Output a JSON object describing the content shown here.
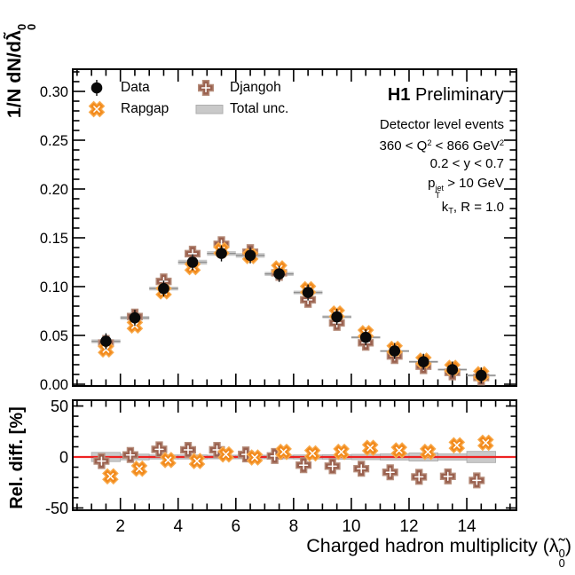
{
  "header": {
    "h1_label": [
      {
        "t": "H1",
        "b": true
      },
      {
        "t": " Preliminary"
      }
    ]
  },
  "conditions": {
    "lines": [
      [
        {
          "t": "Detector level events"
        }
      ],
      [
        {
          "t": "360 < Q"
        },
        {
          "sup": "2"
        },
        {
          "t": " < 866 GeV"
        },
        {
          "sup": "2"
        }
      ],
      [
        {
          "t": "0.2 < y < 0.7"
        }
      ],
      [
        {
          "t": "p"
        },
        {
          "supsub": [
            "jet",
            "T"
          ]
        },
        {
          "t": " > 10 GeV"
        }
      ],
      [
        {
          "t": "k"
        },
        {
          "sub": "T"
        },
        {
          "t": ", R = 1.0"
        }
      ]
    ]
  },
  "legend": {
    "items": [
      {
        "label": "Data",
        "marker": "data"
      },
      {
        "label": "Rapgap",
        "marker": "rapgap"
      },
      {
        "label": "Djangoh",
        "marker": "djangoh"
      },
      {
        "label": "Total unc.",
        "marker": "unc"
      }
    ]
  },
  "colors": {
    "data": "#0a0a0a",
    "rapgap": "#f28a1c",
    "rapgap_edge": "#f8a94b",
    "djangoh": "#9a614f",
    "djangoh_edge": "#b68d7b",
    "band": "#c9c9c9",
    "band_edge": "#aeaeae",
    "binline": "#8f8f8f",
    "zero_line": "#ee2222",
    "frame": "#000000"
  },
  "chart_data": {
    "type": "scatter",
    "title": "H1 Preliminary",
    "xlabel_rich": [
      {
        "t": "Charged hadron multiplicity ("
      },
      {
        "t": "λ̃"
      },
      {
        "supsub": [
          "0",
          "0"
        ]
      },
      {
        "t": ")"
      }
    ],
    "ylabel_main_rich": [
      {
        "t": "1/N dN/d"
      },
      {
        "t": "λ̃"
      },
      {
        "supsub": [
          "0",
          "0"
        ]
      }
    ],
    "ylabel_ratio": "Rel. diff. [%]",
    "x_bin_centers": [
      1.5,
      2.5,
      3.5,
      4.5,
      5.5,
      6.5,
      7.5,
      8.5,
      9.5,
      10.5,
      11.5,
      12.5,
      13.5,
      14.5
    ],
    "bin_width": 1,
    "xlim": [
      0.35,
      15.72
    ],
    "xticks": [
      2,
      4,
      6,
      8,
      10,
      12,
      14
    ],
    "x_minor_step": 0.5,
    "main_panel": {
      "ylim": [
        0,
        0.3227
      ],
      "yticks": [
        0,
        0.05,
        0.1,
        0.15,
        0.2,
        0.25,
        0.3
      ],
      "y_minor_step": 0.01,
      "tick_decimals": 2,
      "grid": false
    },
    "ratio_panel": {
      "ylim": [
        -52.2,
        55.7
      ],
      "yticks": [
        -50,
        0,
        50
      ],
      "y_minor_step": 10
    },
    "series": [
      {
        "name": "Data",
        "role": "data",
        "values": [
          0.044,
          0.068,
          0.098,
          0.125,
          0.134,
          0.132,
          0.113,
          0.094,
          0.069,
          0.048,
          0.034,
          0.023,
          0.015,
          0.009
        ]
      },
      {
        "name": "Rapgap",
        "role": "mc",
        "rel_diff_pct": [
          -19,
          -11.5,
          -3,
          -4,
          2.5,
          -0.5,
          5,
          3.5,
          5,
          9,
          6.5,
          5,
          11.5,
          14
        ]
      },
      {
        "name": "Djangoh",
        "role": "mc",
        "rel_diff_pct": [
          -4,
          2,
          7.5,
          7,
          7,
          2.5,
          1,
          -8,
          -9,
          -11.5,
          -15,
          -19.5,
          -19,
          -23
        ]
      },
      {
        "name": "Total unc.",
        "role": "uncertainty",
        "half_band_pct": [
          4.5,
          2.8,
          2,
          2,
          1.8,
          1.8,
          1.8,
          2,
          2.2,
          2.6,
          3,
          4,
          3,
          5.5
        ]
      }
    ]
  }
}
